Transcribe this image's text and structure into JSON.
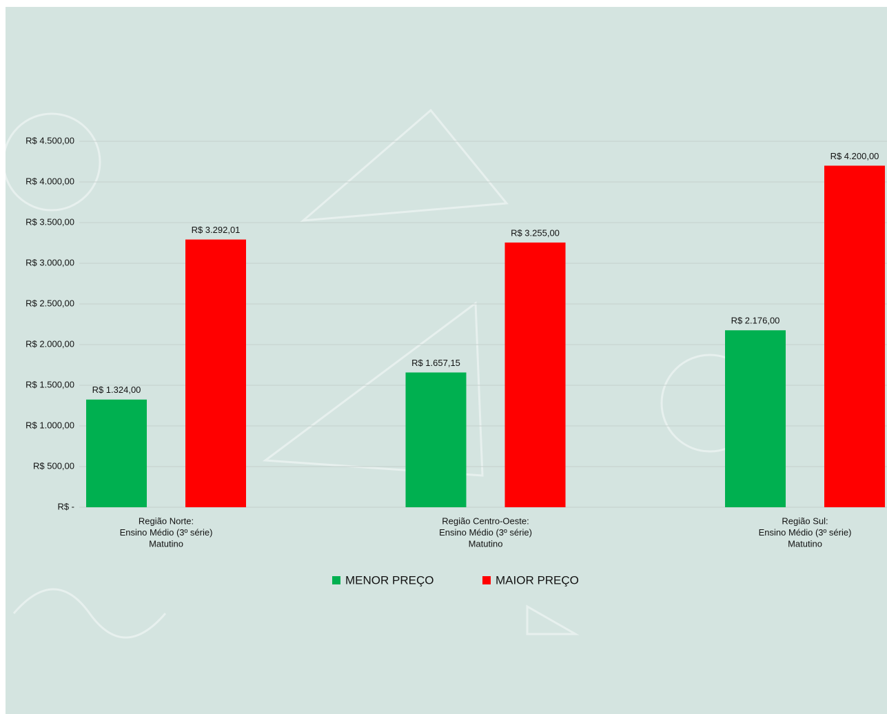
{
  "chart_data": {
    "type": "bar",
    "categories": [
      [
        "Região Norte:",
        "Ensino Médio (3º série)",
        "Matutino"
      ],
      [
        "Região Centro-Oeste:",
        "Ensino Médio (3º série)",
        "Matutino"
      ],
      [
        "Região Sul:",
        "Ensino Médio (3º série)",
        "Matutino"
      ]
    ],
    "series": [
      {
        "name": "MENOR PREÇO",
        "color": "#00b050",
        "values": [
          1324,
          1657.15,
          2176
        ],
        "value_labels": [
          "R$ 1.324,00",
          "R$ 1.657,15",
          "R$ 2.176,00"
        ]
      },
      {
        "name": "MAIOR PREÇO",
        "color": "#ff0000",
        "values": [
          3292.01,
          3255,
          4200
        ],
        "value_labels": [
          "R$ 3.292,01",
          "R$ 3.255,00",
          "R$ 4.200,00"
        ]
      }
    ],
    "ylim": [
      0,
      4500
    ],
    "yticks": [
      {
        "value": 0,
        "label": "R$ -"
      },
      {
        "value": 500,
        "label": "R$ 500,00"
      },
      {
        "value": 1000,
        "label": "R$ 1.000,00"
      },
      {
        "value": 1500,
        "label": "R$ 1.500,00"
      },
      {
        "value": 2000,
        "label": "R$ 2.000,00"
      },
      {
        "value": 2500,
        "label": "R$ 2.500,00"
      },
      {
        "value": 3000,
        "label": "R$ 3.000,00"
      },
      {
        "value": 3500,
        "label": "R$ 3.500,00"
      },
      {
        "value": 4000,
        "label": "R$ 4.000,00"
      },
      {
        "value": 4500,
        "label": "R$ 4.500,00"
      }
    ],
    "grid": true,
    "legend": "bottom"
  }
}
